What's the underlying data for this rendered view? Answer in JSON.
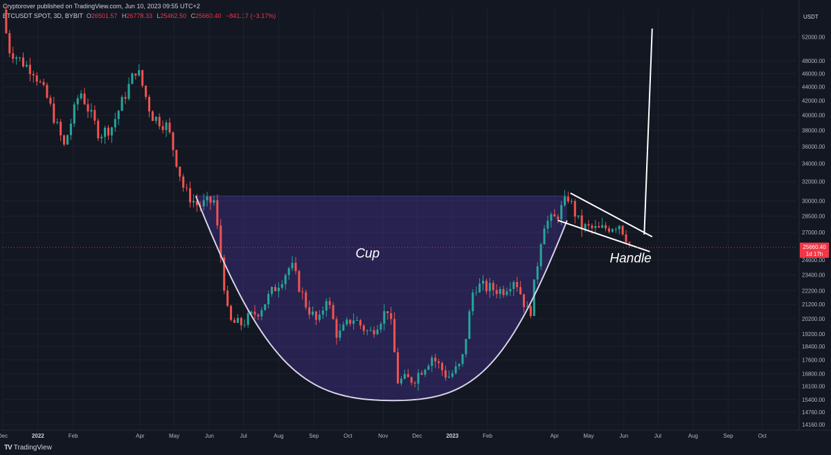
{
  "header": {
    "publish_line": "Cryptorover published on TradingView.com, Jun 10, 2023 09:55 UTC+2",
    "symbol": "BTCUSDT SPOT, 3D, BYBIT",
    "open_label": "O",
    "open": "26501.57",
    "high_label": "H",
    "high": "26778.33",
    "low_label": "L",
    "low": "25462.50",
    "close_label": "C",
    "close": "25660.40",
    "change": "−841.17 (−3.17%)"
  },
  "price_axis": {
    "currency": "USDT",
    "last_price": "25660.40",
    "countdown": "1d 17h"
  },
  "footer": {
    "brand": "TradingView",
    "logo_icon": "tradingview-logo-icon"
  },
  "chart_data": {
    "type": "candlestick",
    "scale": "log",
    "y_ticks": [
      14160,
      14760,
      15400,
      16100,
      16800,
      17600,
      18400,
      19200,
      20200,
      21200,
      22200,
      23400,
      24600,
      27000,
      28500,
      30000,
      32000,
      34000,
      36000,
      38000,
      40000,
      42000,
      44000,
      46000,
      48000,
      52000
    ],
    "y_tick_labels": [
      "14160.00",
      "14760.00",
      "15400.00",
      "16100.00",
      "16800.00",
      "17600.00",
      "18400.00",
      "19200.00",
      "20200.00",
      "21200.00",
      "22200.00",
      "23400.00",
      "24600.00",
      "27000.00",
      "28500.00",
      "30000.00",
      "32000.00",
      "34000.00",
      "36000.00",
      "38000.00",
      "40000.00",
      "42000.00",
      "44000.00",
      "46000.00",
      "48000.00",
      "52000.00"
    ],
    "ylim": [
      13900,
      57000
    ],
    "x_axis_labels": [
      "Dec",
      "2022",
      "Feb",
      "Apr",
      "May",
      "Jun",
      "Jul",
      "Aug",
      "Sep",
      "Oct",
      "Nov",
      "Dec",
      "2023",
      "Feb",
      "Apr",
      "May",
      "Jun",
      "Jul",
      "Aug",
      "Sep",
      "Oct"
    ],
    "x_axis_dates": [
      "2021-12-01",
      "2022-01-01",
      "2022-02-01",
      "2022-04-01",
      "2022-05-01",
      "2022-06-01",
      "2022-07-01",
      "2022-08-01",
      "2022-09-01",
      "2022-10-01",
      "2022-11-01",
      "2022-12-01",
      "2023-01-01",
      "2023-02-01",
      "2023-04-01",
      "2023-05-01",
      "2023-06-01",
      "2023-07-01",
      "2023-08-01",
      "2023-09-01",
      "2023-10-01"
    ],
    "x_start": "2021-12-01",
    "x_end": "2023-10-31",
    "up_color": "#26a69a",
    "down_color": "#ef5350",
    "last_price": 25660.4,
    "anchors": [
      [
        "2021-12-01",
        57000
      ],
      [
        "2021-12-06",
        50000
      ],
      [
        "2021-12-20",
        47500
      ],
      [
        "2021-12-28",
        46500
      ],
      [
        "2022-01-10",
        42000
      ],
      [
        "2022-01-24",
        36000
      ],
      [
        "2022-02-07",
        43500
      ],
      [
        "2022-02-24",
        37500
      ],
      [
        "2022-03-07",
        38500
      ],
      [
        "2022-03-29",
        47000
      ],
      [
        "2022-04-11",
        40000
      ],
      [
        "2022-04-25",
        38500
      ],
      [
        "2022-05-10",
        31000
      ],
      [
        "2022-05-22",
        29500
      ],
      [
        "2022-06-05",
        30000
      ],
      [
        "2022-06-18",
        20000
      ],
      [
        "2022-06-28",
        19800
      ],
      [
        "2022-07-15",
        20800
      ],
      [
        "2022-08-12",
        24200
      ],
      [
        "2022-08-25",
        21200
      ],
      [
        "2022-09-05",
        19800
      ],
      [
        "2022-09-12",
        21800
      ],
      [
        "2022-09-22",
        19000
      ],
      [
        "2022-10-05",
        20300
      ],
      [
        "2022-10-20",
        19200
      ],
      [
        "2022-11-06",
        21000
      ],
      [
        "2022-11-14",
        16400
      ],
      [
        "2022-11-28",
        16500
      ],
      [
        "2022-12-14",
        17800
      ],
      [
        "2022-12-28",
        16600
      ],
      [
        "2023-01-09",
        17300
      ],
      [
        "2023-01-20",
        22600
      ],
      [
        "2023-02-14",
        22200
      ],
      [
        "2023-02-25",
        23200
      ],
      [
        "2023-03-10",
        20300
      ],
      [
        "2023-03-22",
        27800
      ],
      [
        "2023-04-02",
        28300
      ],
      [
        "2023-04-13",
        30400
      ],
      [
        "2023-04-24",
        27500
      ],
      [
        "2023-05-10",
        27200
      ],
      [
        "2023-05-28",
        27800
      ],
      [
        "2023-06-08",
        25660
      ]
    ],
    "annotations": {
      "cup_label": "Cup",
      "handle_label": "Handle",
      "rim_price": 30500,
      "rim_start": "2022-05-20",
      "rim_end": "2023-04-12",
      "cup_bottom_price": 15350,
      "cup_bottom_date": "2022-11-10",
      "cup_start_price": 30500,
      "cup_end_price": 28100,
      "handle_upper": [
        [
          "2023-04-15",
          30800
        ],
        [
          "2023-06-26",
          26600
        ]
      ],
      "handle_lower": [
        [
          "2023-04-04",
          28100
        ],
        [
          "2023-06-24",
          25300
        ]
      ],
      "target_line": [
        [
          "2023-06-19",
          26800
        ],
        [
          "2023-06-26",
          53500
        ]
      ]
    }
  }
}
